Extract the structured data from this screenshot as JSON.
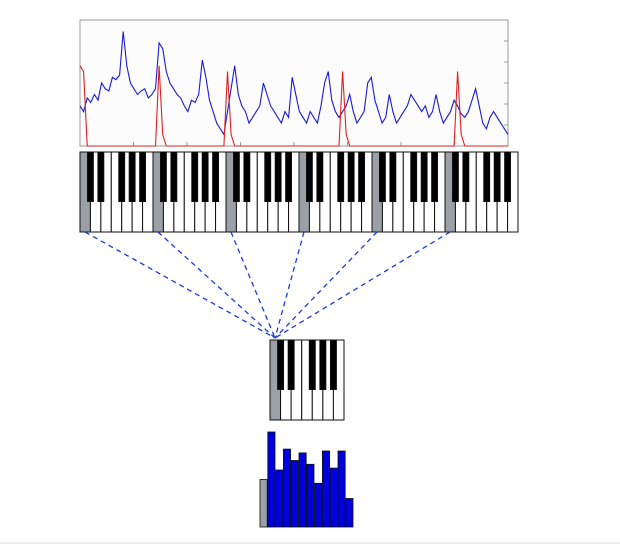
{
  "figure": {
    "colors": {
      "background": "#ffffff",
      "plot_background": "#fcfcfc",
      "axis": "#9a9a9a",
      "spectrum_line": "#1a1ad6",
      "peak_line": "#e02020",
      "connector": "#1a3ad8",
      "white_key": "#ffffff",
      "black_key": "#000000",
      "highlight_key": "#9aa0a6",
      "bar_fill": "#0000dd",
      "bar_gray": "#9aa0a6",
      "key_outline": "#111111"
    },
    "octave_count": 6,
    "octave_pattern": [
      "W",
      "B",
      "W",
      "B",
      "W",
      "W",
      "B",
      "W",
      "B",
      "W",
      "B",
      "W"
    ],
    "highlighted_pitch_class": 0,
    "chroma_values": [
      0.5,
      1.0,
      0.6,
      0.82,
      0.7,
      0.78,
      0.66,
      0.46,
      0.8,
      0.62,
      0.8,
      0.3
    ]
  },
  "chart_data": {
    "type": "line",
    "title": "",
    "xlabel": "",
    "ylabel": "",
    "series": [
      {
        "values": [
          0.35,
          0.3,
          0.42,
          0.38,
          0.45,
          0.4,
          0.55,
          0.5,
          0.48,
          0.6,
          0.58,
          0.62,
          1.0,
          0.7,
          0.55,
          0.5,
          0.45,
          0.48,
          0.5,
          0.42,
          0.45,
          0.5,
          0.9,
          0.85,
          0.65,
          0.55,
          0.5,
          0.45,
          0.42,
          0.35,
          0.3,
          0.4,
          0.38,
          0.45,
          0.75,
          0.6,
          0.4,
          0.3,
          0.2,
          0.15,
          0.1,
          0.3,
          0.5,
          0.7,
          0.45,
          0.35,
          0.3,
          0.2,
          0.25,
          0.3,
          0.35,
          0.55,
          0.45,
          0.35,
          0.3,
          0.25,
          0.2,
          0.3,
          0.25,
          0.6,
          0.45,
          0.3,
          0.25,
          0.2,
          0.3,
          0.25,
          0.2,
          0.35,
          0.55,
          0.65,
          0.4,
          0.3,
          0.25,
          0.3,
          0.35,
          0.45,
          0.3,
          0.2,
          0.25,
          0.3,
          0.55,
          0.6,
          0.4,
          0.3,
          0.2,
          0.25,
          0.45,
          0.3,
          0.2,
          0.25,
          0.3,
          0.35,
          0.45,
          0.4,
          0.35,
          0.3,
          0.35,
          0.25,
          0.3,
          0.45,
          0.3,
          0.2,
          0.25,
          0.3,
          0.4,
          0.35,
          0.28,
          0.25,
          0.3,
          0.4,
          0.5,
          0.35,
          0.2,
          0.15,
          0.25,
          0.3,
          0.25,
          0.2,
          0.15,
          0.1
        ]
      },
      {
        "values": [
          0.7,
          0.65,
          0.0,
          0.0,
          0.0,
          0.0,
          0.0,
          0.0,
          0.0,
          0.0,
          0.0,
          0.0,
          0.0,
          0.0,
          0.0,
          0.0,
          0.0,
          0.0,
          0.0,
          0.0,
          0.0,
          0.0,
          0.7,
          0.1,
          0.0,
          0.0,
          0.0,
          0.0,
          0.0,
          0.0,
          0.0,
          0.0,
          0.0,
          0.0,
          0.0,
          0.0,
          0.0,
          0.0,
          0.0,
          0.0,
          0.0,
          0.65,
          0.1,
          0.0,
          0.0,
          0.0,
          0.0,
          0.0,
          0.0,
          0.0,
          0.0,
          0.0,
          0.0,
          0.0,
          0.0,
          0.0,
          0.0,
          0.0,
          0.0,
          0.0,
          0.0,
          0.0,
          0.0,
          0.0,
          0.0,
          0.0,
          0.0,
          0.0,
          0.0,
          0.0,
          0.0,
          0.0,
          0.0,
          0.65,
          0.1,
          0.0,
          0.0,
          0.0,
          0.0,
          0.0,
          0.0,
          0.0,
          0.0,
          0.0,
          0.0,
          0.0,
          0.0,
          0.0,
          0.0,
          0.0,
          0.0,
          0.0,
          0.0,
          0.0,
          0.0,
          0.0,
          0.0,
          0.0,
          0.0,
          0.0,
          0.0,
          0.0,
          0.0,
          0.0,
          0.0,
          0.65,
          0.1,
          0.0,
          0.0,
          0.0,
          0.0,
          0.0,
          0.0,
          0.0,
          0.0,
          0.0,
          0.0,
          0.0,
          0.0,
          0.0
        ]
      }
    ],
    "ylim": [
      0,
      1.1
    ],
    "grid": false
  }
}
